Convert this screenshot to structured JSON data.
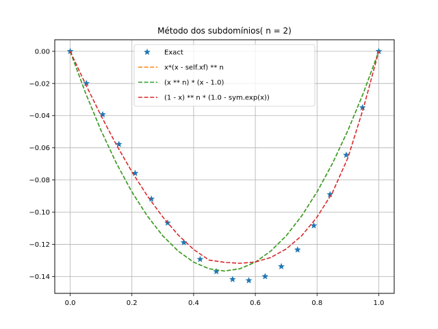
{
  "chart_data": {
    "type": "line",
    "title": "Método dos subdomínios( n = 2)",
    "xlabel": "",
    "ylabel": "",
    "xlim": [
      -0.05,
      1.05
    ],
    "ylim": [
      -0.1505,
      0.0072
    ],
    "grid": true,
    "legend_position": "top-center",
    "x_ticks": [
      0.0,
      0.2,
      0.4,
      0.6,
      0.8,
      1.0
    ],
    "x_tick_labels": [
      "0.0",
      "0.2",
      "0.4",
      "0.6",
      "0.8",
      "1.0"
    ],
    "y_ticks": [
      0.0,
      -0.02,
      -0.04,
      -0.06,
      -0.08,
      -0.1,
      -0.12,
      -0.14
    ],
    "y_tick_labels": [
      "0.00",
      "−0.02",
      "−0.04",
      "−0.06",
      "−0.08",
      "−0.10",
      "−0.12",
      "−0.14"
    ],
    "series": [
      {
        "name": "Exact",
        "style": "star-markers",
        "color": "#1f77b4",
        "x": [
          0.0,
          0.0526,
          0.1053,
          0.1579,
          0.2105,
          0.2632,
          0.3158,
          0.3684,
          0.4211,
          0.4737,
          0.5263,
          0.5789,
          0.6316,
          0.6842,
          0.7368,
          0.7895,
          0.8421,
          0.8947,
          0.9474,
          1.0
        ],
        "y": [
          0.0,
          -0.0199,
          -0.0393,
          -0.0578,
          -0.0758,
          -0.0918,
          -0.1067,
          -0.1189,
          -0.1293,
          -0.1369,
          -0.1418,
          -0.1425,
          -0.14,
          -0.1338,
          -0.1234,
          -0.1084,
          -0.089,
          -0.0645,
          -0.035,
          0.0
        ]
      },
      {
        "name": "x*(x - self.xf) ** n",
        "style": "dashed",
        "color": "#ff7f0e",
        "x": [
          0.0,
          0.05,
          0.1,
          0.15,
          0.2,
          0.25,
          0.3,
          0.35,
          0.4,
          0.45,
          0.5,
          0.55,
          0.6,
          0.65,
          0.7,
          0.75,
          0.8,
          0.85,
          0.9,
          0.95,
          1.0
        ],
        "y": [
          0.0,
          -0.026,
          -0.0492,
          -0.0697,
          -0.0874,
          -0.1024,
          -0.1147,
          -0.1242,
          -0.1311,
          -0.1352,
          -0.1366,
          -0.1352,
          -0.1311,
          -0.1242,
          -0.1147,
          -0.1024,
          -0.0874,
          -0.0697,
          -0.0492,
          -0.026,
          0.0
        ]
      },
      {
        "name": "(x ** n) * (x - 1.0)",
        "style": "dashed",
        "color": "#2ca02c",
        "x": [
          0.0,
          0.05,
          0.1,
          0.15,
          0.2,
          0.25,
          0.3,
          0.35,
          0.4,
          0.45,
          0.5,
          0.55,
          0.6,
          0.65,
          0.7,
          0.75,
          0.8,
          0.85,
          0.9,
          0.95,
          1.0
        ],
        "y": [
          0.0,
          -0.026,
          -0.0492,
          -0.0697,
          -0.0874,
          -0.1024,
          -0.1147,
          -0.1242,
          -0.1311,
          -0.1352,
          -0.1366,
          -0.1352,
          -0.1311,
          -0.1242,
          -0.1147,
          -0.1024,
          -0.0874,
          -0.0697,
          -0.0492,
          -0.026,
          0.0
        ]
      },
      {
        "name": "(1 - x) ** n * (1.0 - sym.exp(x))",
        "style": "dashed",
        "color": "#d62728",
        "x": [
          0.0,
          0.05,
          0.1,
          0.15,
          0.2,
          0.25,
          0.3,
          0.35,
          0.4,
          0.45,
          0.5,
          0.55,
          0.6,
          0.65,
          0.7,
          0.75,
          0.8,
          0.85,
          0.9,
          0.95,
          1.0
        ],
        "y": [
          0.0,
          -0.0205,
          -0.04,
          -0.0582,
          -0.0749,
          -0.0899,
          -0.103,
          -0.1142,
          -0.1232,
          -0.1298,
          -0.1312,
          -0.1318,
          -0.131,
          -0.1282,
          -0.1229,
          -0.1147,
          -0.1031,
          -0.0878,
          -0.0662,
          -0.0355,
          0.0
        ]
      }
    ]
  }
}
